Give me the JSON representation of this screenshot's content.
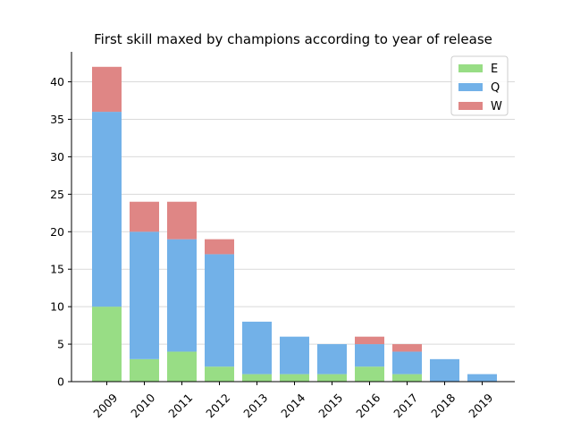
{
  "chart_data": {
    "type": "bar",
    "stacked": true,
    "title": "First skill maxed by champions according to year of release",
    "xlabel": "",
    "ylabel": "",
    "categories": [
      "2009",
      "2010",
      "2011",
      "2012",
      "2013",
      "2014",
      "2015",
      "2016",
      "2017",
      "2018",
      "2019"
    ],
    "series": [
      {
        "name": "E",
        "color": "#98dd85",
        "values": [
          10,
          3,
          4,
          2,
          1,
          1,
          1,
          2,
          1,
          0,
          0
        ]
      },
      {
        "name": "Q",
        "color": "#72b1e8",
        "values": [
          26,
          17,
          15,
          15,
          7,
          5,
          4,
          3,
          3,
          3,
          1
        ]
      },
      {
        "name": "W",
        "color": "#df8685",
        "values": [
          6,
          4,
          5,
          2,
          0,
          0,
          0,
          1,
          1,
          0,
          0
        ]
      }
    ],
    "ylim": [
      0,
      44
    ],
    "yticks": [
      0,
      5,
      10,
      15,
      20,
      25,
      30,
      35,
      40
    ],
    "grid": "horizontal",
    "legend_position": "top-right",
    "xtick_rotation": 45
  }
}
